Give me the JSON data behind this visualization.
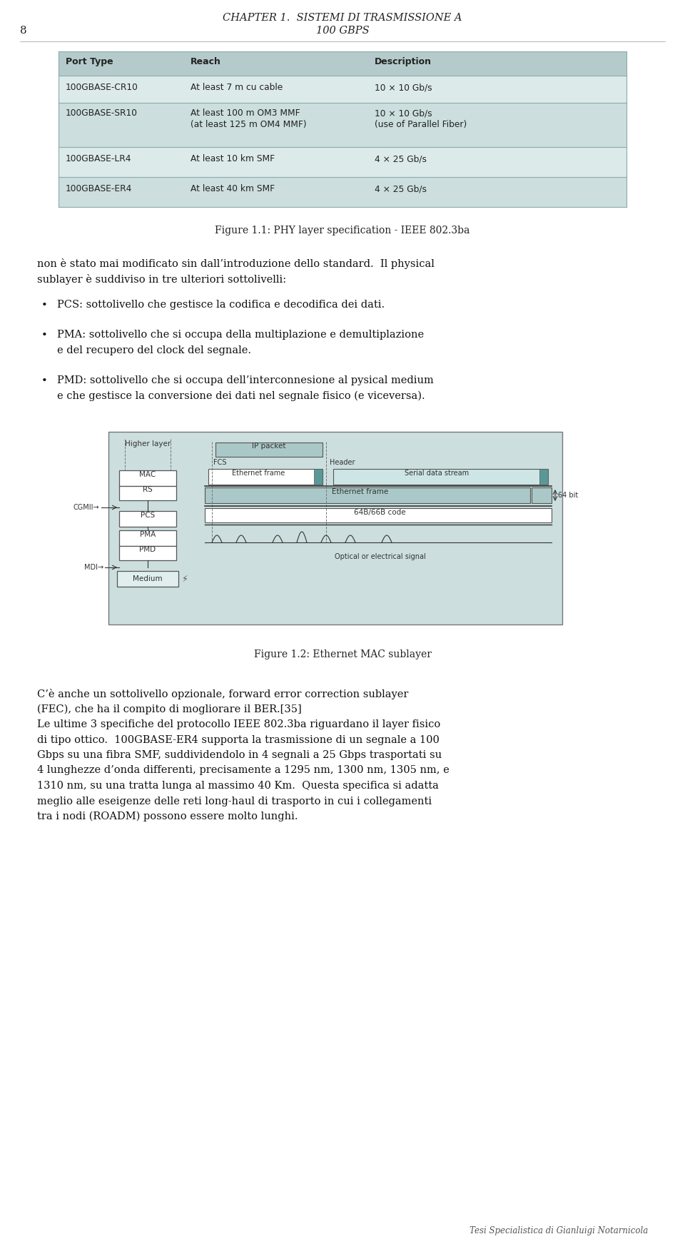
{
  "bg_color": "#ffffff",
  "page_width": 9.6,
  "page_height": 17.36,
  "header_chapter": "CHAPTER 1.  SISTEMI DI TRASMISSIONE A",
  "header_page_right": "100 GBPS",
  "header_page_num": "8",
  "table": {
    "header": [
      "Port Type",
      "Reach",
      "Description"
    ],
    "rows": [
      [
        "100GBASE-CR10",
        "At least 7 m cu cable",
        "10 × 10 Gb/s"
      ],
      [
        "100GBASE-SR10",
        "At least 100 m OM3 MMF\n(at least 125 m OM4 MMF)",
        "10 × 10 Gb/s\n(use of Parallel Fiber)"
      ],
      [
        "100GBASE-LR4",
        "At least 10 km SMF",
        "4 × 25 Gb/s"
      ],
      [
        "100GBASE-ER4",
        "At least 40 km SMF",
        "4 × 25 Gb/s"
      ]
    ],
    "bg_header": "#b5cbcb",
    "bg_row_even": "#ccdede",
    "bg_row_odd": "#ddeaea",
    "text_color": "#333333"
  },
  "fig1_caption": "Figure 1.1: PHY layer specification - IEEE 802.3ba",
  "para1_line1": "non è stato mai modificato sin dall’introduzione dello standard.  Il physical",
  "para1_line2": "sublayer è suddiviso in tre ulteriori sottolivelli:",
  "bullets": [
    [
      "PCS: sottolivello che gestisce la codifica e decodifica dei dati."
    ],
    [
      "PMA: sottolivello che si occupa della multiplazione e demultiplazione",
      "e del recupero del clock del segnale."
    ],
    [
      "PMD: sottolivello che si occupa dell’interconnesione al pysical medium",
      "e che gestisce la conversione dei dati nel segnale fisico (e viceversa)."
    ]
  ],
  "fig2_caption": "Figure 1.2: Ethernet MAC sublayer",
  "para2_lines": [
    "C’è anche un sottolivello opzionale, forward error correction sublayer",
    "(FEC), che ha il compito di mogliorare il BER.[35]",
    "Le ultime 3 specifiche del protocollo IEEE 802.3ba riguardano il layer fisico",
    "di tipo ottico.  100GBASE-ER4 supporta la trasmissione di un segnale a 100",
    "Gbps su una fibra SMF, suddividendolo in 4 segnali a 25 Gbps trasportati su",
    "4 lunghezze d’onda differenti, precisamente a 1295 nm, 1300 nm, 1305 nm, e",
    "1310 nm, su una tratta lunga al massimo 40 Km.  Questa specifica si adatta",
    "meglio alle eseigenze delle reti long-haul di trasporto in cui i collegamenti",
    "tra i nodi (ROADM) possono essere molto lunghi."
  ],
  "footer": "Tesi Specialistica di Gianluigi Notarnicola",
  "diagram_bg": "#ccdede",
  "diag_box_bg": "#aac8c8"
}
